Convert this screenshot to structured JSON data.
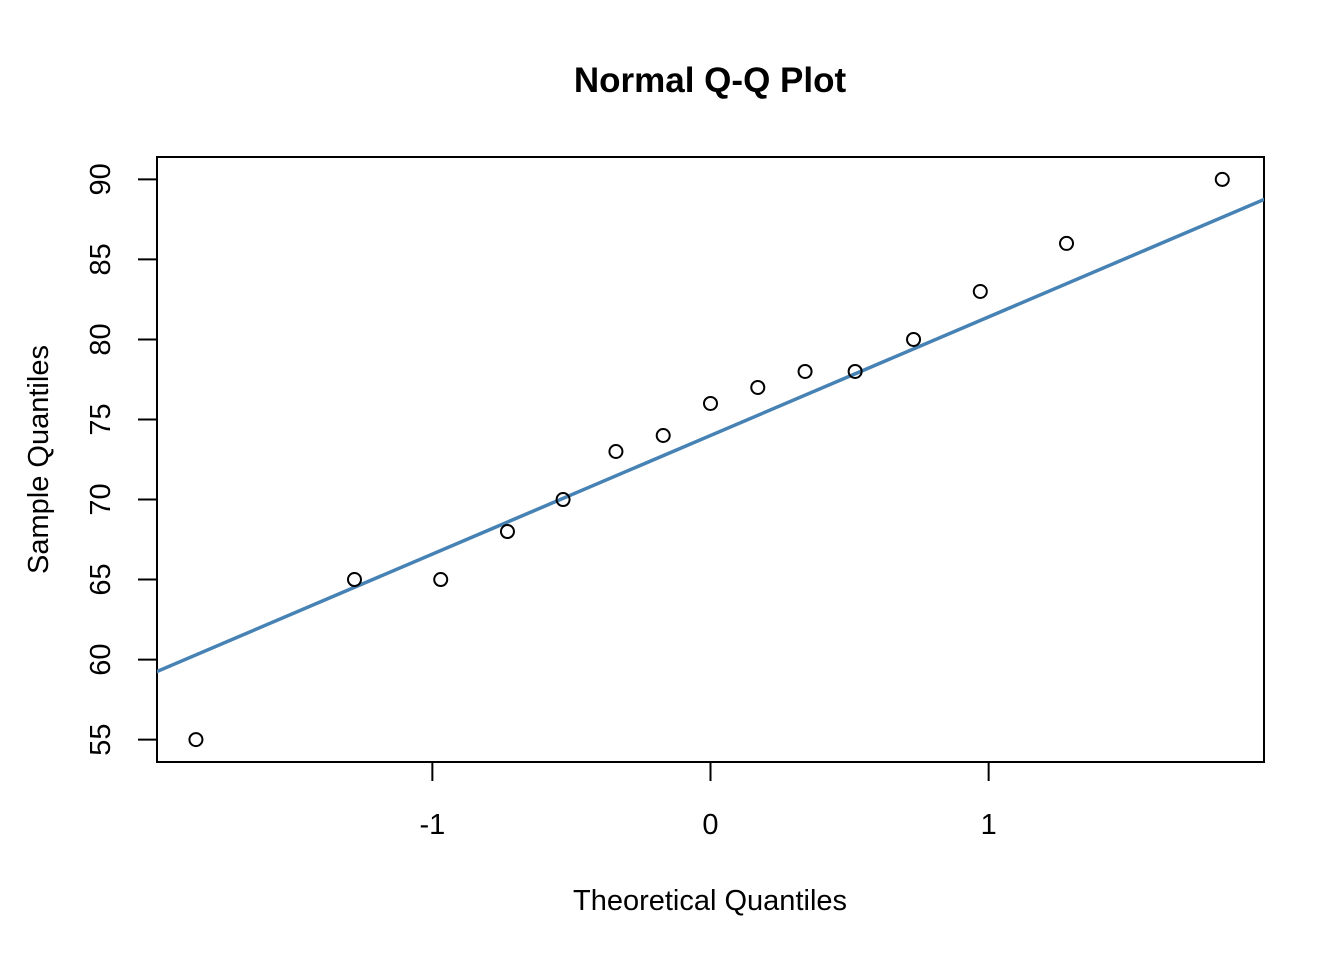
{
  "chart_data": {
    "type": "scatter",
    "title": "Normal Q-Q Plot",
    "xlabel": "Theoretical Quantiles",
    "ylabel": "Sample Quantiles",
    "xlim": [
      -1.99,
      1.99
    ],
    "ylim": [
      53.6,
      91.4
    ],
    "x_ticks": [
      -1,
      0,
      1
    ],
    "x_tick_labels": [
      "-1",
      "0",
      "1"
    ],
    "y_ticks": [
      55,
      60,
      65,
      70,
      75,
      80,
      85,
      90
    ],
    "y_tick_labels": [
      "55",
      "60",
      "65",
      "70",
      "75",
      "80",
      "85",
      "90"
    ],
    "grid": false,
    "legend": "none",
    "series": [
      {
        "marker": "open-circle",
        "color": "#000000",
        "x": [
          -1.85,
          -1.28,
          -0.97,
          -0.73,
          -0.53,
          -0.34,
          -0.17,
          0.0,
          0.17,
          0.34,
          0.52,
          0.73,
          0.97,
          1.28,
          1.84
        ],
        "y": [
          55,
          65,
          65,
          68,
          70,
          73,
          74,
          76,
          77,
          78,
          78,
          80,
          83,
          86,
          90
        ]
      }
    ],
    "reference_line": {
      "color": "#4682B4",
      "intercept": 74.0,
      "slope": 7.41
    }
  }
}
